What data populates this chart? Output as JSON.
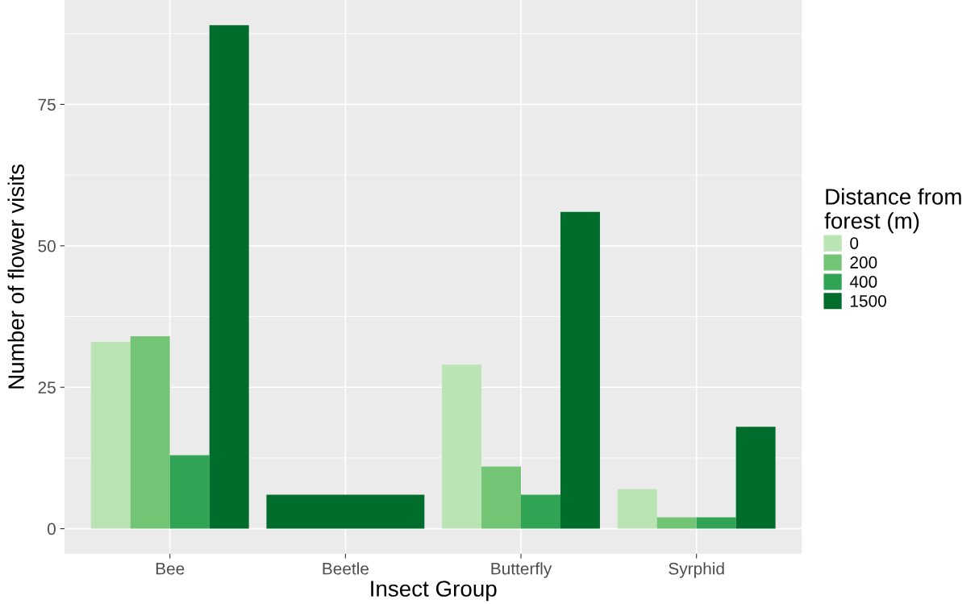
{
  "chart_data": {
    "type": "bar",
    "xlabel": "Insect Group",
    "ylabel": "Number of flower visits",
    "legend_title": "Distance from\nforest (m)",
    "categories": [
      "Bee",
      "Beetle",
      "Butterfly",
      "Syrphid"
    ],
    "series": [
      {
        "name": "0",
        "color": "#bae4b3",
        "values": [
          33,
          null,
          29,
          7
        ]
      },
      {
        "name": "200",
        "color": "#74c476",
        "values": [
          34,
          null,
          11,
          2
        ]
      },
      {
        "name": "400",
        "color": "#31a354",
        "values": [
          13,
          null,
          6,
          2
        ]
      },
      {
        "name": "1500",
        "color": "#006d2c",
        "values": [
          89,
          6,
          56,
          18
        ]
      }
    ],
    "ylim": [
      -4.45,
      93.45
    ],
    "yticks": [
      0,
      25,
      50,
      75
    ],
    "grid": true,
    "legend": "right"
  }
}
